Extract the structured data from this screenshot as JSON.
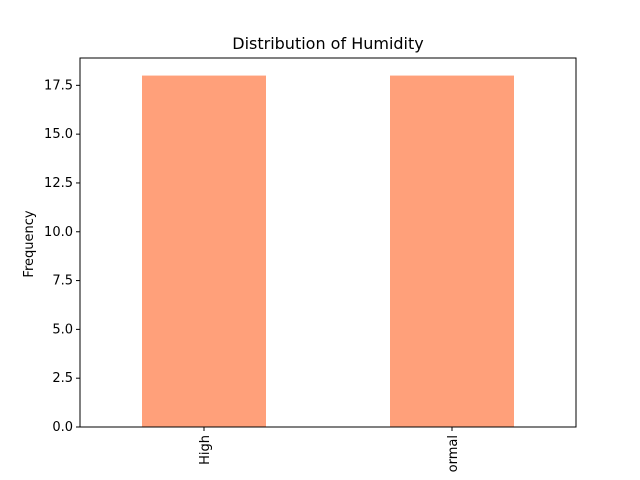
{
  "chart_data": {
    "type": "bar",
    "title": "Distribution of Humidity",
    "xlabel": "",
    "ylabel": "Frequency",
    "categories": [
      "High",
      "ormal"
    ],
    "values": [
      18,
      18
    ],
    "ylim": [
      0,
      18.9
    ],
    "yticks": [
      "0.0",
      "2.5",
      "5.0",
      "7.5",
      "10.0",
      "12.5",
      "15.0",
      "17.5"
    ],
    "grid": false,
    "bar_color": "#ffa07a"
  }
}
